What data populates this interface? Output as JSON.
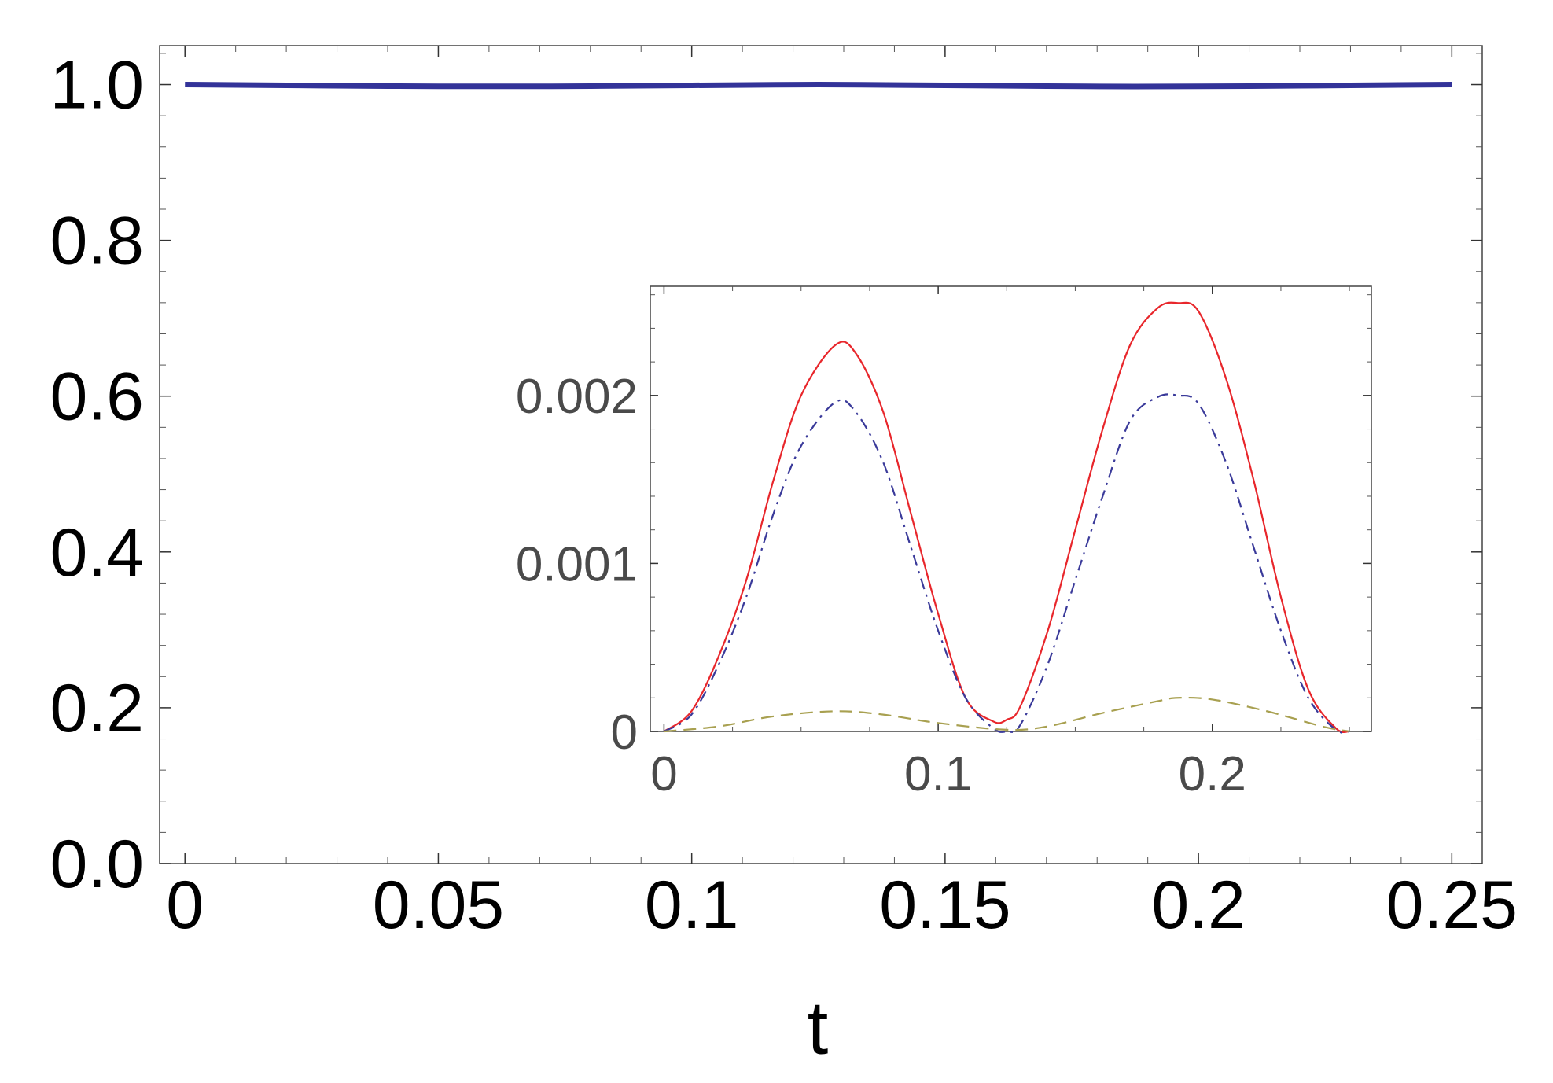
{
  "chart_data": [
    {
      "type": "line",
      "title": "",
      "xlabel": "t",
      "ylabel": "",
      "xlim": [
        -0.005,
        0.256
      ],
      "ylim": [
        0.0,
        1.05
      ],
      "xticks": [
        0,
        0.05,
        0.1,
        0.15,
        0.2,
        0.25
      ],
      "xtick_labels": [
        "0",
        "0.05",
        "0.1",
        "0.15",
        "0.2",
        "0.25"
      ],
      "yticks": [
        0.0,
        0.2,
        0.4,
        0.6,
        0.8,
        1.0
      ],
      "ytick_labels": [
        "0.0",
        "0.2",
        "0.4",
        "0.6",
        "0.8",
        "1.0"
      ],
      "grid": false,
      "series": [
        {
          "color": "#333399",
          "style": "solid",
          "x": [
            0,
            0.02,
            0.04,
            0.0625,
            0.08,
            0.1,
            0.125,
            0.15,
            0.17,
            0.1875,
            0.21,
            0.23,
            0.25
          ],
          "y": [
            1.0,
            0.999,
            0.998,
            0.9977,
            0.998,
            0.999,
            1.0,
            0.999,
            0.998,
            0.9975,
            0.998,
            0.999,
            1.0
          ]
        }
      ]
    },
    {
      "type": "line",
      "title": "",
      "xlabel": "",
      "ylabel": "",
      "xlim": [
        -0.005,
        0.258
      ],
      "ylim": [
        0.0,
        0.00265
      ],
      "xticks": [
        0,
        0.1,
        0.2
      ],
      "xtick_labels": [
        "0",
        "0.1",
        "0.2"
      ],
      "yticks": [
        0,
        0.001,
        0.002
      ],
      "ytick_labels": [
        "0",
        "0.001",
        "0.002"
      ],
      "grid": false,
      "series": [
        {
          "color": "#e8262b",
          "style": "solid",
          "x": [
            0,
            0.01,
            0.02,
            0.03,
            0.04,
            0.05,
            0.0625,
            0.07,
            0.08,
            0.09,
            0.1,
            0.11,
            0.12,
            0.125,
            0.13,
            0.14,
            0.15,
            0.16,
            0.17,
            0.18,
            0.1875,
            0.195,
            0.205,
            0.215,
            0.225,
            0.235,
            0.245,
            0.25
          ],
          "y": [
            0,
            0.00012,
            0.00045,
            0.0009,
            0.0015,
            0.002,
            0.0023,
            0.00225,
            0.0019,
            0.0013,
            0.0007,
            0.0002,
            6e-05,
            7e-05,
            0.00015,
            0.0006,
            0.0012,
            0.0018,
            0.0023,
            0.00252,
            0.00255,
            0.0025,
            0.0021,
            0.0015,
            0.0008,
            0.00025,
            2e-05,
            0
          ]
        },
        {
          "color": "#3a3a9a",
          "style": "dashdot",
          "x": [
            0,
            0.01,
            0.02,
            0.03,
            0.04,
            0.05,
            0.0625,
            0.07,
            0.08,
            0.09,
            0.1,
            0.11,
            0.12,
            0.125,
            0.13,
            0.14,
            0.15,
            0.16,
            0.17,
            0.18,
            0.1875,
            0.195,
            0.205,
            0.215,
            0.225,
            0.235,
            0.245,
            0.25
          ],
          "y": [
            0,
            0.0001,
            0.0004,
            0.0008,
            0.0013,
            0.0017,
            0.00196,
            0.0019,
            0.0016,
            0.0011,
            0.0006,
            0.0002,
            2e-05,
            0,
            4e-05,
            0.0004,
            0.0009,
            0.0014,
            0.00185,
            0.00199,
            0.002,
            0.00195,
            0.0016,
            0.0011,
            0.0006,
            0.0002,
            1e-05,
            0
          ]
        },
        {
          "color": "#a8a050",
          "style": "dashed",
          "x": [
            0,
            0.02,
            0.04,
            0.0625,
            0.08,
            0.1,
            0.125,
            0.14,
            0.16,
            0.18,
            0.1875,
            0.2,
            0.22,
            0.24,
            0.25
          ],
          "y": [
            0,
            3e-05,
            9e-05,
            0.00012,
            0.0001,
            5e-05,
            1e-05,
            3e-05,
            0.00011,
            0.00018,
            0.0002,
            0.00019,
            0.00012,
            3e-05,
            0
          ]
        }
      ]
    }
  ]
}
